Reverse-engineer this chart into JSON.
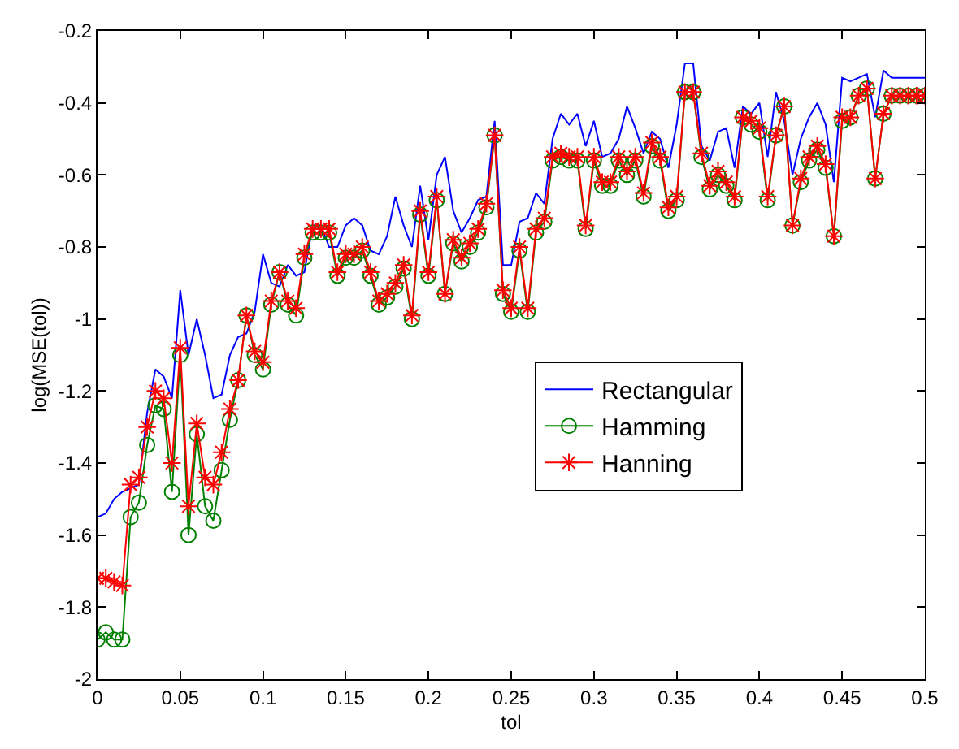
{
  "chart_data": {
    "type": "line",
    "xlabel": "tol",
    "ylabel": "log(MSE(tol))",
    "x": [
      0,
      0.005,
      0.01,
      0.015,
      0.02,
      0.025,
      0.03,
      0.035,
      0.04,
      0.045,
      0.05,
      0.055,
      0.06,
      0.065,
      0.07,
      0.075,
      0.08,
      0.085,
      0.09,
      0.095,
      0.1,
      0.105,
      0.11,
      0.115,
      0.12,
      0.125,
      0.13,
      0.135,
      0.14,
      0.145,
      0.15,
      0.155,
      0.16,
      0.165,
      0.17,
      0.175,
      0.18,
      0.185,
      0.19,
      0.195,
      0.2,
      0.205,
      0.21,
      0.215,
      0.22,
      0.225,
      0.23,
      0.235,
      0.24,
      0.245,
      0.25,
      0.255,
      0.26,
      0.265,
      0.27,
      0.275,
      0.28,
      0.285,
      0.29,
      0.295,
      0.3,
      0.305,
      0.31,
      0.315,
      0.32,
      0.325,
      0.33,
      0.335,
      0.34,
      0.345,
      0.35,
      0.355,
      0.36,
      0.365,
      0.37,
      0.375,
      0.38,
      0.385,
      0.39,
      0.395,
      0.4,
      0.405,
      0.41,
      0.415,
      0.42,
      0.425,
      0.43,
      0.435,
      0.44,
      0.445,
      0.45,
      0.455,
      0.46,
      0.465,
      0.47,
      0.475,
      0.48,
      0.485,
      0.49,
      0.495,
      0.5
    ],
    "series": [
      {
        "name": "Rectangular",
        "color": "#0000ff",
        "marker": "none",
        "values": [
          -1.55,
          -1.54,
          -1.5,
          -1.48,
          -1.47,
          -1.46,
          -1.26,
          -1.14,
          -1.16,
          -1.22,
          -0.92,
          -1.1,
          -1.0,
          -1.1,
          -1.22,
          -1.21,
          -1.1,
          -1.05,
          -1.04,
          -0.98,
          -0.82,
          -0.9,
          -0.91,
          -0.85,
          -0.88,
          -0.87,
          -0.74,
          -0.74,
          -0.8,
          -0.8,
          -0.74,
          -0.72,
          -0.74,
          -0.81,
          -0.82,
          -0.77,
          -0.66,
          -0.74,
          -0.8,
          -0.63,
          -0.78,
          -0.6,
          -0.55,
          -0.7,
          -0.76,
          -0.72,
          -0.67,
          -0.66,
          -0.45,
          -0.85,
          -0.85,
          -0.73,
          -0.72,
          -0.65,
          -0.68,
          -0.5,
          -0.43,
          -0.46,
          -0.43,
          -0.52,
          -0.45,
          -0.55,
          -0.54,
          -0.5,
          -0.41,
          -0.47,
          -0.54,
          -0.48,
          -0.5,
          -0.58,
          -0.46,
          -0.29,
          -0.29,
          -0.52,
          -0.56,
          -0.48,
          -0.47,
          -0.58,
          -0.41,
          -0.43,
          -0.4,
          -0.55,
          -0.37,
          -0.45,
          -0.6,
          -0.5,
          -0.44,
          -0.4,
          -0.46,
          -0.62,
          -0.33,
          -0.34,
          -0.33,
          -0.32,
          -0.44,
          -0.31,
          -0.33,
          -0.33,
          -0.33,
          -0.33,
          -0.33
        ]
      },
      {
        "name": "Hamming",
        "color": "#008000",
        "marker": "circle",
        "values": [
          -1.89,
          -1.87,
          -1.89,
          -1.89,
          -1.55,
          -1.51,
          -1.35,
          -1.24,
          -1.25,
          -1.48,
          -1.1,
          -1.6,
          -1.32,
          -1.52,
          -1.56,
          -1.42,
          -1.28,
          -1.17,
          -0.99,
          -1.1,
          -1.14,
          -0.96,
          -0.87,
          -0.96,
          -0.99,
          -0.83,
          -0.76,
          -0.76,
          -0.76,
          -0.88,
          -0.83,
          -0.83,
          -0.81,
          -0.88,
          -0.96,
          -0.94,
          -0.91,
          -0.86,
          -1.0,
          -0.71,
          -0.88,
          -0.67,
          -0.93,
          -0.79,
          -0.84,
          -0.8,
          -0.76,
          -0.69,
          -0.49,
          -0.93,
          -0.98,
          -0.81,
          -0.98,
          -0.76,
          -0.73,
          -0.56,
          -0.55,
          -0.56,
          -0.56,
          -0.75,
          -0.56,
          -0.63,
          -0.63,
          -0.56,
          -0.6,
          -0.56,
          -0.66,
          -0.52,
          -0.56,
          -0.7,
          -0.67,
          -0.37,
          -0.37,
          -0.55,
          -0.64,
          -0.6,
          -0.63,
          -0.67,
          -0.44,
          -0.46,
          -0.48,
          -0.67,
          -0.49,
          -0.41,
          -0.74,
          -0.62,
          -0.56,
          -0.53,
          -0.58,
          -0.77,
          -0.45,
          -0.44,
          -0.38,
          -0.36,
          -0.61,
          -0.43,
          -0.38,
          -0.38,
          -0.38,
          -0.38,
          -0.38
        ]
      },
      {
        "name": "Hanning",
        "color": "#ff0000",
        "marker": "cross",
        "values": [
          -1.72,
          -1.72,
          -1.73,
          -1.74,
          -1.46,
          -1.44,
          -1.3,
          -1.2,
          -1.22,
          -1.4,
          -1.08,
          -1.52,
          -1.29,
          -1.44,
          -1.46,
          -1.37,
          -1.25,
          -1.17,
          -0.99,
          -1.09,
          -1.12,
          -0.95,
          -0.87,
          -0.95,
          -0.97,
          -0.82,
          -0.75,
          -0.75,
          -0.75,
          -0.87,
          -0.82,
          -0.82,
          -0.8,
          -0.87,
          -0.95,
          -0.93,
          -0.9,
          -0.85,
          -0.99,
          -0.7,
          -0.87,
          -0.66,
          -0.93,
          -0.78,
          -0.83,
          -0.79,
          -0.75,
          -0.68,
          -0.49,
          -0.92,
          -0.97,
          -0.8,
          -0.97,
          -0.75,
          -0.72,
          -0.55,
          -0.54,
          -0.55,
          -0.55,
          -0.74,
          -0.55,
          -0.62,
          -0.62,
          -0.55,
          -0.59,
          -0.55,
          -0.65,
          -0.51,
          -0.55,
          -0.69,
          -0.66,
          -0.37,
          -0.37,
          -0.54,
          -0.63,
          -0.59,
          -0.62,
          -0.66,
          -0.44,
          -0.45,
          -0.47,
          -0.66,
          -0.49,
          -0.41,
          -0.74,
          -0.61,
          -0.55,
          -0.52,
          -0.57,
          -0.77,
          -0.44,
          -0.44,
          -0.38,
          -0.36,
          -0.61,
          -0.43,
          -0.38,
          -0.38,
          -0.38,
          -0.38,
          -0.38
        ]
      }
    ],
    "xlim": [
      0,
      0.5
    ],
    "xticks": [
      0,
      0.05,
      0.1,
      0.15,
      0.2,
      0.25,
      0.3,
      0.35,
      0.4,
      0.45,
      0.5
    ],
    "ylim": [
      -2,
      -0.2
    ],
    "yticks": [
      -2,
      -1.8,
      -1.6,
      -1.4,
      -1.2,
      -1,
      -0.8,
      -0.6,
      -0.4,
      -0.2
    ],
    "legend": "center right",
    "line_style": "solid"
  }
}
